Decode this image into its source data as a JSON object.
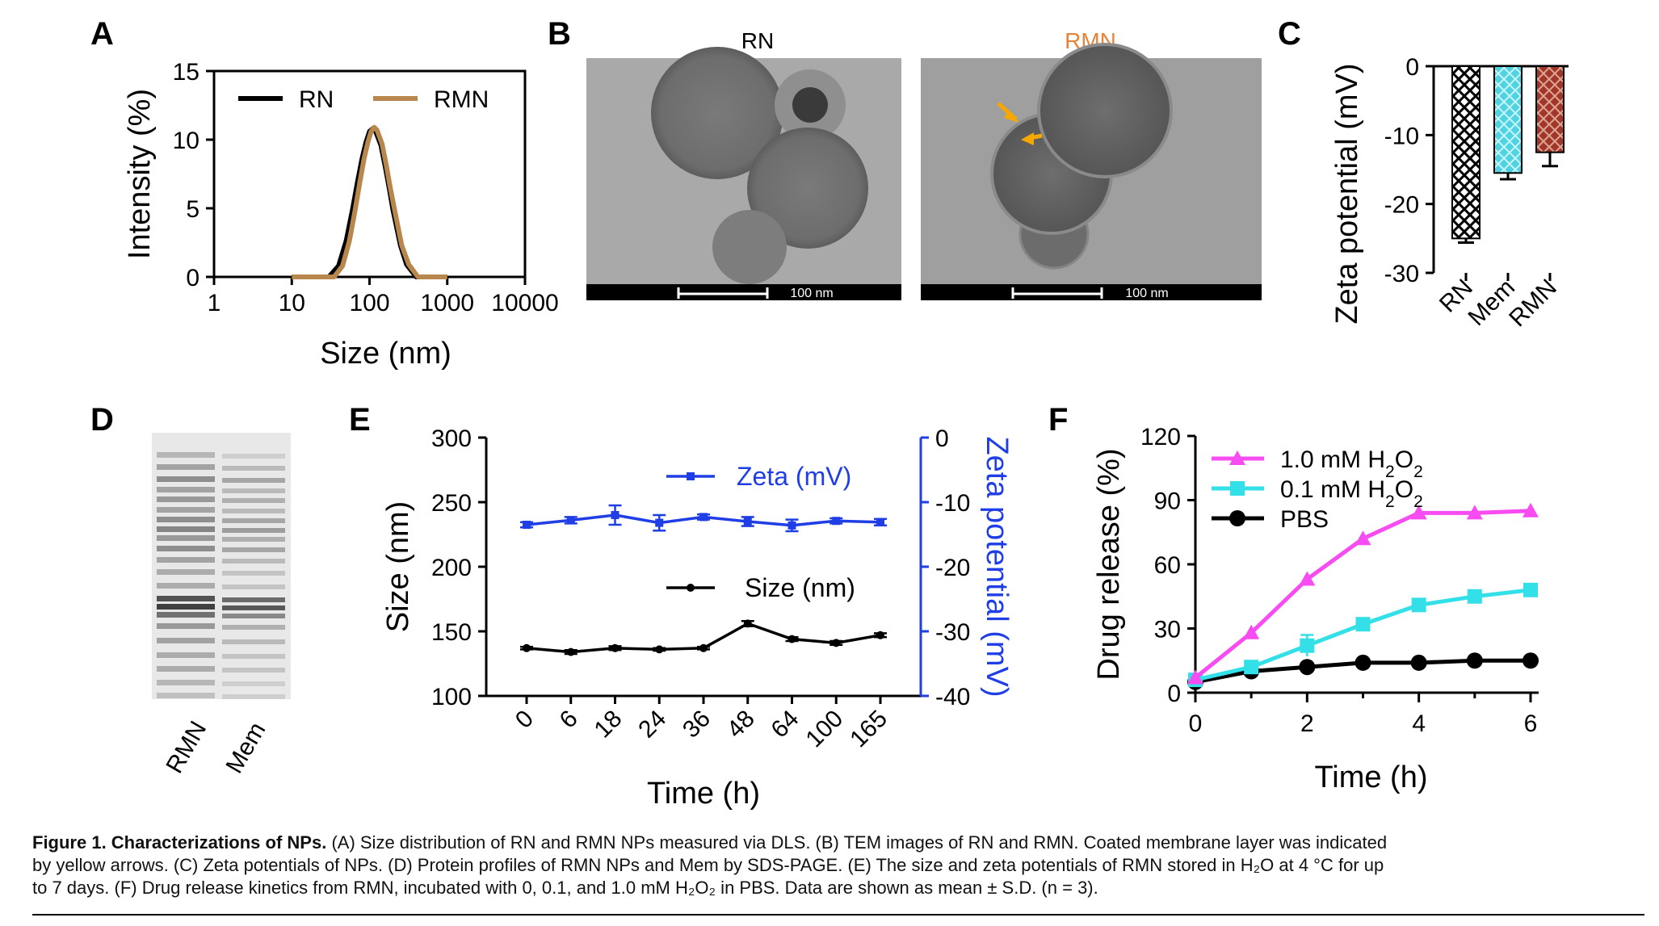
{
  "panel_labels": [
    "A",
    "B",
    "C",
    "D",
    "E",
    "F"
  ],
  "colors": {
    "black": "#000000",
    "brown": "#b8874e",
    "rmn_orange": "#e8843a",
    "blue": "#1f3ee6",
    "magenta": "#f74cf2",
    "cyan": "#33e0e8",
    "mem_cyan": "#4fd3e0",
    "rmn_bar": "#a0372a",
    "arrow_yellow": "#f6a800"
  },
  "panel_b": {
    "left_title": "RN",
    "right_title": "RMN",
    "left_scale": "100 nm",
    "right_scale": "100 nm"
  },
  "panel_d": {
    "lane_labels": [
      "RMN",
      "Mem"
    ]
  },
  "chart_data": [
    {
      "panel": "A",
      "type": "line",
      "xlabel": "Size (nm)",
      "ylabel": "Intensity (%)",
      "xscale": "log",
      "xlim": [
        1,
        10000
      ],
      "ylim": [
        0,
        15
      ],
      "xticks": [
        "1",
        "10",
        "100",
        "1000",
        "10000"
      ],
      "yticks": [
        "0",
        "5",
        "10",
        "15"
      ],
      "legend_position": "top",
      "series": [
        {
          "name": "RN",
          "color": "#000000",
          "x": [
            10,
            30,
            40,
            50,
            60,
            70,
            80,
            90,
            100,
            110,
            120,
            140,
            160,
            180,
            200,
            250,
            300,
            400,
            1000
          ],
          "y": [
            0,
            0,
            0.8,
            2.6,
            4.8,
            6.9,
            8.6,
            9.8,
            10.6,
            10.8,
            10.6,
            9.6,
            8.0,
            6.4,
            4.9,
            2.3,
            0.9,
            0,
            0
          ]
        },
        {
          "name": "RMN",
          "color": "#b8874e",
          "x": [
            10,
            35,
            45,
            55,
            65,
            75,
            85,
            95,
            105,
            115,
            125,
            145,
            165,
            185,
            210,
            260,
            320,
            420,
            1000
          ],
          "y": [
            0,
            0,
            0.8,
            2.6,
            4.8,
            6.9,
            8.6,
            9.8,
            10.6,
            10.9,
            10.7,
            9.7,
            8.1,
            6.5,
            4.9,
            2.3,
            0.9,
            0,
            0
          ]
        }
      ]
    },
    {
      "panel": "C",
      "type": "bar",
      "ylabel": "Zeta potential (mV)",
      "categories": [
        "RN",
        "Mem",
        "RMN"
      ],
      "values": [
        -25,
        -15.5,
        -12.5
      ],
      "errors": [
        0.6,
        0.9,
        2.0
      ],
      "ylim": [
        -30,
        0
      ],
      "yticks": [
        "0",
        "-10",
        "-20",
        "-30"
      ]
    },
    {
      "panel": "E",
      "type": "line",
      "xlabel": "Time (h)",
      "ylabel_left": "Size (nm)",
      "ylabel_right": "Zeta potential (mV)",
      "categories": [
        "0",
        "6",
        "18",
        "24",
        "36",
        "48",
        "64",
        "100",
        "165"
      ],
      "ylim_left": [
        100,
        300
      ],
      "ylim_right": [
        -40,
        0
      ],
      "yticks_left": [
        "100",
        "150",
        "200",
        "250",
        "300"
      ],
      "yticks_right": [
        "0",
        "-10",
        "-20",
        "-30",
        "-40"
      ],
      "series": [
        {
          "name": "Zeta (mV)",
          "axis": "right",
          "color": "#1f3ee6",
          "values": [
            -13.5,
            -12.8,
            -12.0,
            -13.2,
            -12.3,
            -13.0,
            -13.6,
            -12.9,
            -13.1
          ],
          "errors": [
            0.4,
            0.5,
            1.5,
            1.2,
            0.4,
            0.7,
            0.9,
            0.4,
            0.5
          ]
        },
        {
          "name": "Size (nm)",
          "axis": "left",
          "color": "#000000",
          "values": [
            137,
            134,
            137,
            136,
            137,
            156,
            144,
            141,
            147
          ],
          "errors": [
            1,
            1.5,
            1.5,
            1,
            1,
            2,
            1.5,
            1.5,
            1.5
          ]
        }
      ]
    },
    {
      "panel": "F",
      "type": "line",
      "xlabel": "Time (h)",
      "ylabel": "Drug release (%)",
      "xlim": [
        0,
        6
      ],
      "ylim": [
        0,
        120
      ],
      "xticks": [
        "0",
        "2",
        "4",
        "6"
      ],
      "yticks": [
        "0",
        "30",
        "60",
        "90",
        "120"
      ],
      "series": [
        {
          "name": "1.0 mM H2O2",
          "color": "#f74cf2",
          "marker": "triangle",
          "x": [
            0,
            1,
            2,
            3,
            4,
            5,
            6
          ],
          "y": [
            7,
            28,
            53,
            72,
            84,
            84,
            85
          ],
          "errors": [
            0.5,
            1,
            1,
            1,
            0.8,
            0.8,
            0.8
          ]
        },
        {
          "name": "0.1 mM H2O2",
          "color": "#33e0e8",
          "marker": "square",
          "x": [
            0,
            1,
            2,
            3,
            4,
            5,
            6
          ],
          "y": [
            6,
            12,
            22,
            32,
            41,
            45,
            48
          ],
          "errors": [
            0.5,
            1,
            5,
            1.5,
            1.5,
            1,
            1
          ]
        },
        {
          "name": "PBS",
          "color": "#000000",
          "marker": "circle",
          "x": [
            0,
            1,
            2,
            3,
            4,
            5,
            6
          ],
          "y": [
            5,
            10,
            12,
            14,
            14,
            15,
            15
          ],
          "errors": [
            0.5,
            0.5,
            0.5,
            0.5,
            0.5,
            0.5,
            0.5
          ]
        }
      ]
    }
  ],
  "caption": {
    "title": "Figure 1. Characterizations of NPs.",
    "line1": "(A) Size distribution of RN and RMN NPs measured via DLS. (B) TEM images of RN and RMN. Coated membrane layer was indicated",
    "line2": "by yellow arrows. (C) Zeta potentials of NPs. (D) Protein profiles of RMN NPs and Mem by SDS-PAGE. (E) The size and zeta potentials of RMN stored in H₂O at 4 °C for up",
    "line3": "to 7 days. (F) Drug release kinetics from RMN, incubated with 0, 0.1, and 1.0 mM H₂O₂ in PBS. Data are shown as mean ± S.D. (n = 3)."
  }
}
